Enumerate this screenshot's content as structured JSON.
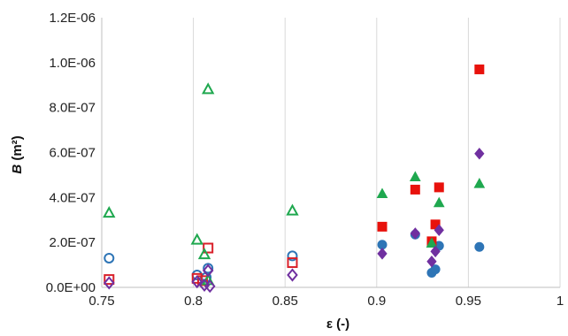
{
  "chart_data": {
    "type": "scatter",
    "title": "",
    "xlabel": "ε (-)",
    "ylabel_main": "B",
    "ylabel_unit": " (m²)",
    "xlim": [
      0.75,
      1.0
    ],
    "ylim": [
      0,
      1.2e-06
    ],
    "grid": "vertical",
    "legend": "none",
    "x_ticks": [
      {
        "value": 0.75,
        "label": "0.75"
      },
      {
        "value": 0.8,
        "label": "0.8"
      },
      {
        "value": 0.85,
        "label": "0.85"
      },
      {
        "value": 0.9,
        "label": "0.9"
      },
      {
        "value": 0.95,
        "label": "0.95"
      },
      {
        "value": 1.0,
        "label": "1"
      }
    ],
    "y_ticks": [
      {
        "value": 0,
        "label": "0.0E+00"
      },
      {
        "value": 2e-07,
        "label": "2.0E-07"
      },
      {
        "value": 4e-07,
        "label": "4.0E-07"
      },
      {
        "value": 6e-07,
        "label": "6.0E-07"
      },
      {
        "value": 8e-07,
        "label": "8.0E-07"
      },
      {
        "value": 1e-06,
        "label": "1.0E-06"
      },
      {
        "value": 1.2e-06,
        "label": "1.2E-06"
      }
    ],
    "series": [
      {
        "marker": "circle",
        "fill": "none",
        "color": "#2E75B6",
        "points": [
          [
            0.754,
            1.3e-07
          ],
          [
            0.802,
            5.5e-08
          ],
          [
            0.807,
            4.5e-08
          ],
          [
            0.808,
            8.5e-08
          ],
          [
            0.854,
            1.4e-07
          ]
        ]
      },
      {
        "marker": "square",
        "fill": "none",
        "color": "#D9202A",
        "points": [
          [
            0.754,
            3.5e-08
          ],
          [
            0.802,
            4e-08
          ],
          [
            0.805,
            3e-08
          ],
          [
            0.808,
            1.75e-07
          ],
          [
            0.854,
            1.1e-07
          ]
        ]
      },
      {
        "marker": "triangle",
        "fill": "none",
        "color": "#1FA84F",
        "points": [
          [
            0.754,
            3.3e-07
          ],
          [
            0.802,
            2.1e-07
          ],
          [
            0.806,
            1.45e-07
          ],
          [
            0.808,
            8.8e-07
          ],
          [
            0.854,
            3.4e-07
          ],
          [
            0.808,
            3e-08
          ]
        ]
      },
      {
        "marker": "diamond",
        "fill": "none",
        "color": "#7030A0",
        "points": [
          [
            0.754,
            2e-08
          ],
          [
            0.802,
            2.5e-08
          ],
          [
            0.806,
            1e-08
          ],
          [
            0.808,
            7.5e-08
          ],
          [
            0.809,
            5e-09
          ],
          [
            0.854,
            5.5e-08
          ]
        ]
      },
      {
        "marker": "circle",
        "fill": "solid",
        "color": "#2E75B6",
        "points": [
          [
            0.903,
            1.9e-07
          ],
          [
            0.921,
            2.35e-07
          ],
          [
            0.93,
            6.5e-08
          ],
          [
            0.932,
            8e-08
          ],
          [
            0.934,
            1.85e-07
          ],
          [
            0.956,
            1.8e-07
          ]
        ]
      },
      {
        "marker": "square",
        "fill": "solid",
        "color": "#E8120C",
        "points": [
          [
            0.903,
            2.7e-07
          ],
          [
            0.921,
            4.35e-07
          ],
          [
            0.93,
            2.05e-07
          ],
          [
            0.932,
            2.8e-07
          ],
          [
            0.934,
            4.45e-07
          ],
          [
            0.956,
            9.7e-07
          ]
        ]
      },
      {
        "marker": "triangle",
        "fill": "solid",
        "color": "#1FA84F",
        "points": [
          [
            0.903,
            4.15e-07
          ],
          [
            0.921,
            4.9e-07
          ],
          [
            0.93,
            1.95e-07
          ],
          [
            0.934,
            3.75e-07
          ],
          [
            0.956,
            4.6e-07
          ]
        ]
      },
      {
        "marker": "diamond",
        "fill": "solid",
        "color": "#7030A0",
        "points": [
          [
            0.903,
            1.5e-07
          ],
          [
            0.921,
            2.4e-07
          ],
          [
            0.93,
            1.15e-07
          ],
          [
            0.932,
            1.6e-07
          ],
          [
            0.934,
            2.55e-07
          ],
          [
            0.956,
            5.95e-07
          ]
        ]
      }
    ]
  }
}
